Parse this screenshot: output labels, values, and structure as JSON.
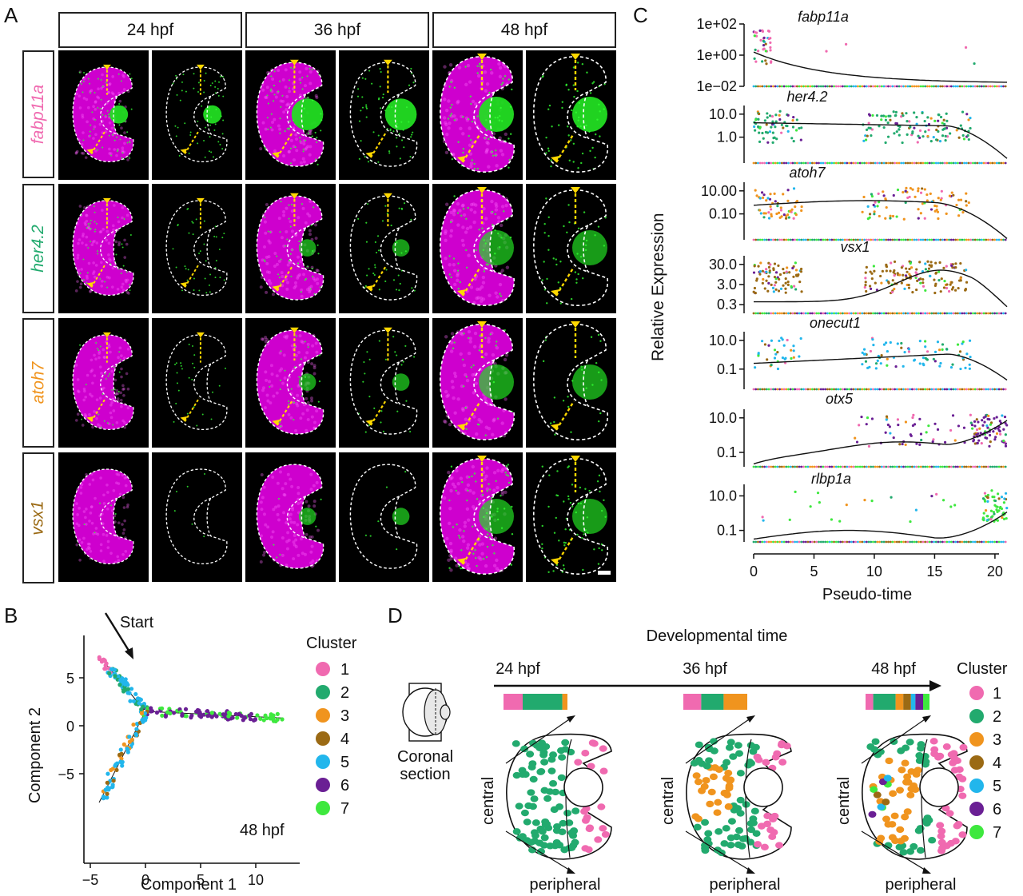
{
  "panels": {
    "A": "A",
    "B": "B",
    "C": "C",
    "D": "D"
  },
  "panelA": {
    "timepoints": [
      "24 hpf",
      "36 hpf",
      "48 hpf"
    ],
    "genes": [
      {
        "name": "fabp11a",
        "color": "#f06ab0"
      },
      {
        "name": "her4.2",
        "color": "#22aa6e"
      },
      {
        "name": "atoh7",
        "color": "#f0941e"
      },
      {
        "name": "vsx1",
        "color": "#9b6a14"
      }
    ]
  },
  "panelB": {
    "legend_title": "Cluster",
    "clusters": [
      {
        "label": "1",
        "color": "#f06ab0"
      },
      {
        "label": "2",
        "color": "#22aa6e"
      },
      {
        "label": "3",
        "color": "#f0941e"
      },
      {
        "label": "4",
        "color": "#9b6a14"
      },
      {
        "label": "5",
        "color": "#22b6ec"
      },
      {
        "label": "6",
        "color": "#6a1f94"
      },
      {
        "label": "7",
        "color": "#3ee83e"
      }
    ],
    "start_label": "Start",
    "timepoint": "48 hpf",
    "xlabel": "Component 1",
    "ylabel": "Component 2",
    "xticks": [
      "−5",
      "0",
      "5",
      "10"
    ],
    "yticks": [
      "5",
      "0",
      "−5"
    ]
  },
  "panelC": {
    "ylabel": "Relative Expression",
    "xlabel": "Pseudo-time",
    "xticks": [
      "0",
      "5",
      "10",
      "15",
      "20"
    ],
    "genes": [
      {
        "name": "fabp11a",
        "color": "#f06ab0",
        "yticks": [
          "1e+02",
          "1e+00",
          "1e−02"
        ]
      },
      {
        "name": "her4.2",
        "color": "#22aa6e",
        "yticks": [
          "10.0",
          "1.0"
        ]
      },
      {
        "name": "atoh7",
        "color": "#f0941e",
        "yticks": [
          "10.00",
          "0.10"
        ]
      },
      {
        "name": "vsx1",
        "color": "#9b6a14",
        "yticks": [
          "30.0",
          "3.0",
          "0.3"
        ]
      },
      {
        "name": "onecut1",
        "color": "#22b6ec",
        "yticks": [
          "10.0",
          "0.1"
        ]
      },
      {
        "name": "otx5",
        "color": "#6a1f94",
        "yticks": [
          "10.0",
          "0.1"
        ]
      },
      {
        "name": "rlbp1a",
        "color": "#3ee83e",
        "yticks": [
          "10.0",
          "0.1"
        ]
      }
    ]
  },
  "panelD": {
    "title": "Developmental time",
    "timepoints": [
      "24 hpf",
      "36 hpf",
      "48 hpf"
    ],
    "section_label_1": "Coronal",
    "section_label_2": "section",
    "central": "central",
    "peripheral": "peripheral",
    "legend_title": "Cluster",
    "clusters": [
      "1",
      "2",
      "3",
      "4",
      "5",
      "6",
      "7"
    ]
  }
}
